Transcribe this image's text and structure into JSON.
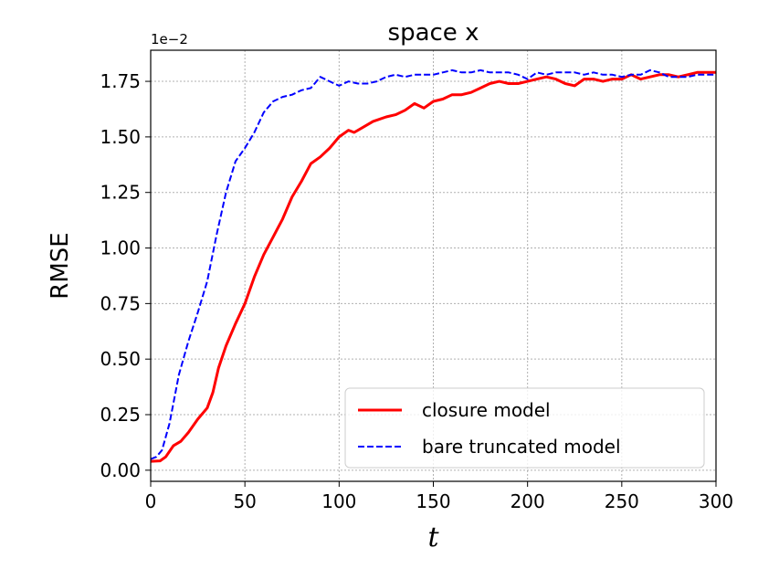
{
  "chart_data": {
    "type": "line",
    "title": "space x",
    "xlabel": "t",
    "ylabel": "RMSE",
    "y_offset_label": "1e−2",
    "xlim": [
      0,
      300
    ],
    "ylim": [
      -0.0005,
      0.0189
    ],
    "grid": true,
    "legend_position": "lower-right",
    "x_ticks": [
      0,
      50,
      100,
      150,
      200,
      250,
      300
    ],
    "x_tick_labels": [
      "0",
      "50",
      "100",
      "150",
      "200",
      "250",
      "300"
    ],
    "y_ticks": [
      0,
      0.0025,
      0.005,
      0.0075,
      0.01,
      0.0125,
      0.015,
      0.0175
    ],
    "y_tick_labels": [
      "0.00",
      "0.25",
      "0.50",
      "0.75",
      "1.00",
      "1.25",
      "1.50",
      "1.75"
    ],
    "series": [
      {
        "name": "closure model",
        "color": "#ff0000",
        "style": "solid",
        "x": [
          0,
          5,
          8,
          12,
          16,
          20,
          25,
          30,
          33,
          36,
          40,
          45,
          50,
          55,
          60,
          65,
          70,
          75,
          80,
          85,
          90,
          95,
          100,
          105,
          108,
          112,
          118,
          125,
          130,
          135,
          140,
          145,
          150,
          155,
          160,
          165,
          170,
          175,
          180,
          185,
          190,
          195,
          200,
          205,
          210,
          215,
          220,
          225,
          230,
          235,
          240,
          245,
          250,
          255,
          260,
          265,
          270,
          275,
          280,
          285,
          290,
          295,
          300
        ],
        "y": [
          0.0004,
          0.00042,
          0.0006,
          0.0011,
          0.0013,
          0.0017,
          0.0023,
          0.0028,
          0.0035,
          0.0046,
          0.0056,
          0.0066,
          0.0075,
          0.0087,
          0.0097,
          0.0105,
          0.0113,
          0.0123,
          0.013,
          0.0138,
          0.0141,
          0.0145,
          0.015,
          0.0153,
          0.0152,
          0.0154,
          0.0157,
          0.0159,
          0.016,
          0.0162,
          0.0165,
          0.0163,
          0.0166,
          0.0167,
          0.0169,
          0.0169,
          0.017,
          0.0172,
          0.0174,
          0.0175,
          0.0174,
          0.0174,
          0.0175,
          0.0176,
          0.0177,
          0.0176,
          0.0174,
          0.0173,
          0.0176,
          0.0176,
          0.0175,
          0.0176,
          0.0176,
          0.0178,
          0.0176,
          0.0177,
          0.0178,
          0.0178,
          0.0177,
          0.0178,
          0.0179,
          0.0179,
          0.0179
        ]
      },
      {
        "name": "bare truncated model",
        "color": "#0000ff",
        "style": "dashed",
        "x": [
          0,
          3,
          6,
          10,
          15,
          20,
          25,
          30,
          35,
          40,
          45,
          50,
          55,
          60,
          65,
          70,
          75,
          80,
          85,
          90,
          95,
          100,
          105,
          110,
          115,
          120,
          125,
          130,
          135,
          140,
          145,
          150,
          155,
          160,
          165,
          170,
          175,
          180,
          185,
          190,
          195,
          200,
          205,
          210,
          215,
          220,
          225,
          230,
          235,
          240,
          245,
          250,
          255,
          260,
          265,
          270,
          275,
          280,
          285,
          290,
          295,
          300
        ],
        "y": [
          0.0005,
          0.0006,
          0.0009,
          0.0021,
          0.0043,
          0.0058,
          0.0071,
          0.0085,
          0.0106,
          0.0125,
          0.0139,
          0.0145,
          0.0152,
          0.0161,
          0.0166,
          0.0168,
          0.0169,
          0.0171,
          0.0172,
          0.0177,
          0.0175,
          0.0173,
          0.0175,
          0.0174,
          0.0174,
          0.0175,
          0.0177,
          0.0178,
          0.0177,
          0.0178,
          0.0178,
          0.0178,
          0.0179,
          0.018,
          0.0179,
          0.0179,
          0.018,
          0.0179,
          0.0179,
          0.0179,
          0.0178,
          0.0176,
          0.0179,
          0.0178,
          0.0179,
          0.0179,
          0.0179,
          0.0178,
          0.0179,
          0.0178,
          0.0178,
          0.0177,
          0.0178,
          0.0178,
          0.018,
          0.0179,
          0.0177,
          0.0177,
          0.0177,
          0.0178,
          0.0178,
          0.0178
        ]
      }
    ]
  }
}
